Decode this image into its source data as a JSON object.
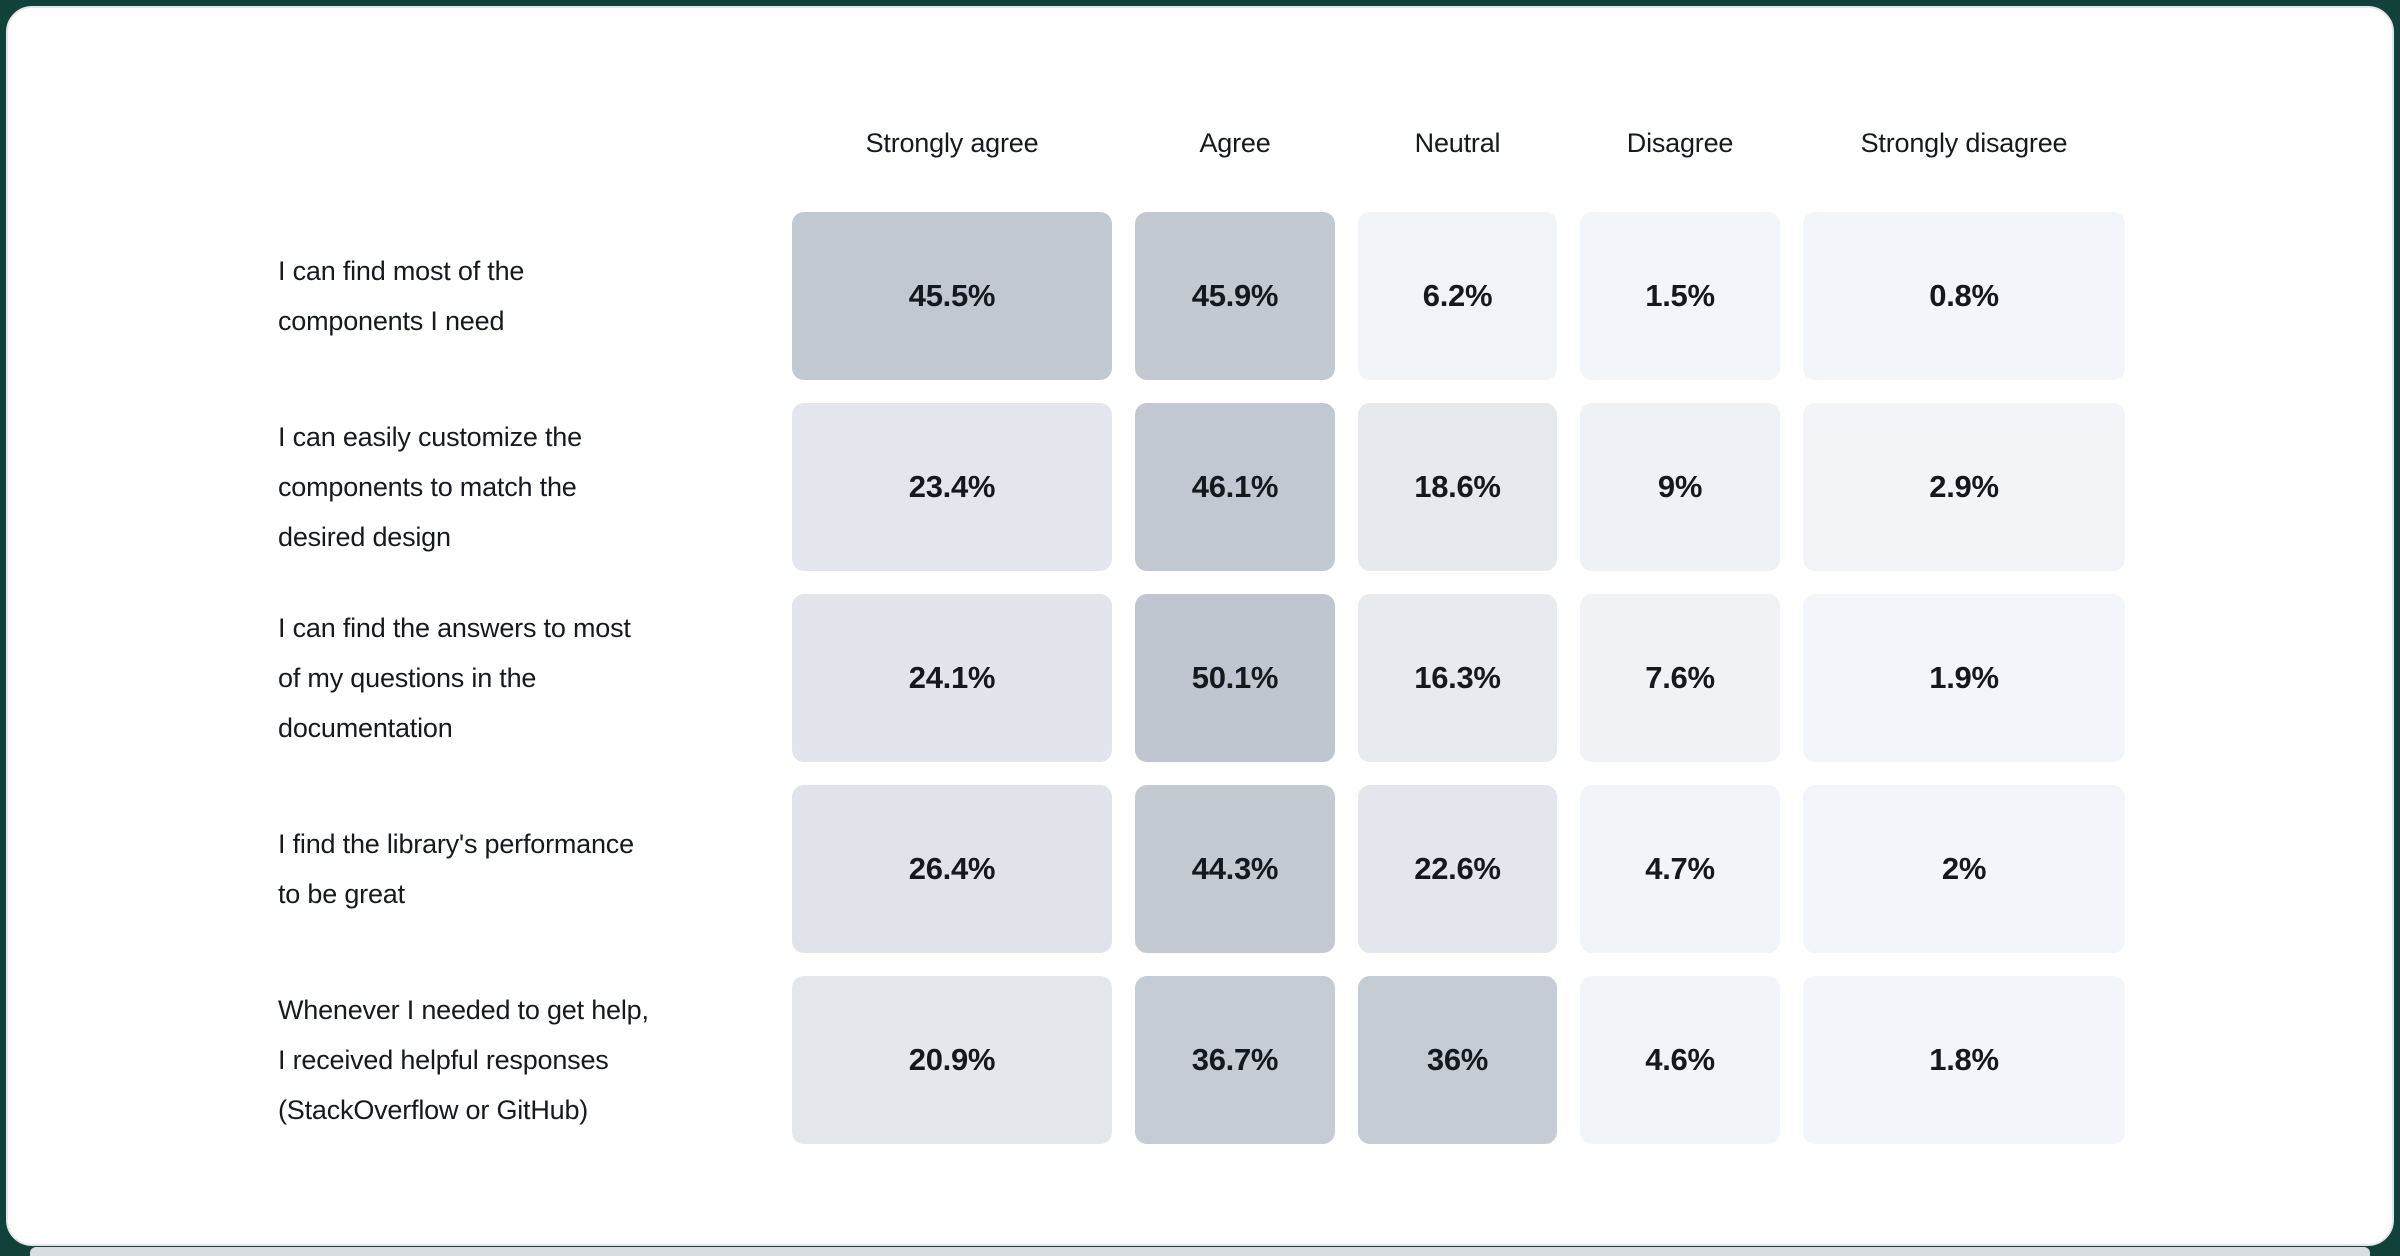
{
  "page": {
    "background_color": "#11423a",
    "card_color": "#ffffff",
    "card_border_color": "#e4e6ea",
    "bottom_strip_color": "#d9dce1"
  },
  "chart_data": {
    "type": "heatmap",
    "title": "",
    "legend_position": "none",
    "grid": false,
    "columns": [
      "Strongly agree",
      "Agree",
      "Neutral",
      "Disagree",
      "Strongly disagree"
    ],
    "color_scale": {
      "low": "#f2f5f9",
      "high": "#bfc6cf"
    },
    "rows": [
      {
        "label": "I can find most of the components I need",
        "label_lines": [
          "I can find most of the",
          "components I need"
        ],
        "values": [
          45.5,
          45.9,
          6.2,
          1.5,
          0.8
        ],
        "value_labels": [
          "45.5%",
          "45.9%",
          "6.2%",
          "1.5%",
          "0.8%"
        ],
        "cell_colors": [
          "#c2c8d1",
          "#c2c9d1",
          "#f0f3f7",
          "#f2f5f9",
          "#f2f5f9"
        ]
      },
      {
        "label": "I can easily customize the components to match the desired design",
        "label_lines": [
          "I can easily customize the",
          "components to match the",
          "desired design"
        ],
        "values": [
          23.4,
          46.1,
          18.6,
          9,
          2.9
        ],
        "value_labels": [
          "23.4%",
          "46.1%",
          "18.6%",
          "9%",
          "2.9%"
        ],
        "cell_colors": [
          "#e3e6ec",
          "#c2c8d1",
          "#e6e9ee",
          "#eef1f5",
          "#f2f4f8"
        ]
      },
      {
        "label": "I can find the answers to most of my questions in the documentation",
        "label_lines": [
          "I can find the answers to most",
          "of my questions in the",
          "documentation"
        ],
        "values": [
          24.1,
          50.1,
          16.3,
          7.6,
          1.9
        ],
        "value_labels": [
          "24.1%",
          "50.1%",
          "16.3%",
          "7.6%",
          "1.9%"
        ],
        "cell_colors": [
          "#e2e5eb",
          "#bfc6cf",
          "#e7eaef",
          "#f0f2f6",
          "#f2f5f9"
        ]
      },
      {
        "label": "I find the library's performance to be great",
        "label_lines": [
          "I find the library's performance",
          "to be great"
        ],
        "values": [
          26.4,
          44.3,
          22.6,
          4.7,
          2
        ],
        "value_labels": [
          "26.4%",
          "44.3%",
          "22.6%",
          "4.7%",
          "2%"
        ],
        "cell_colors": [
          "#e0e4ea",
          "#c3cad2",
          "#e3e6ec",
          "#f1f4f8",
          "#f2f5f9"
        ]
      },
      {
        "label": "Whenever I needed to get help, I received helpful responses (StackOverflow or GitHub)",
        "label_lines": [
          "Whenever I needed to get help,",
          "I received helpful responses",
          "(StackOverflow or GitHub)"
        ],
        "values": [
          20.9,
          36.7,
          36,
          4.6,
          1.8
        ],
        "value_labels": [
          "20.9%",
          "36.7%",
          "36%",
          "4.6%",
          "1.8%"
        ],
        "cell_colors": [
          "#e4e8ed",
          "#c6ccd4",
          "#c6ccd4",
          "#f1f4f8",
          "#f2f5f9"
        ]
      }
    ]
  }
}
